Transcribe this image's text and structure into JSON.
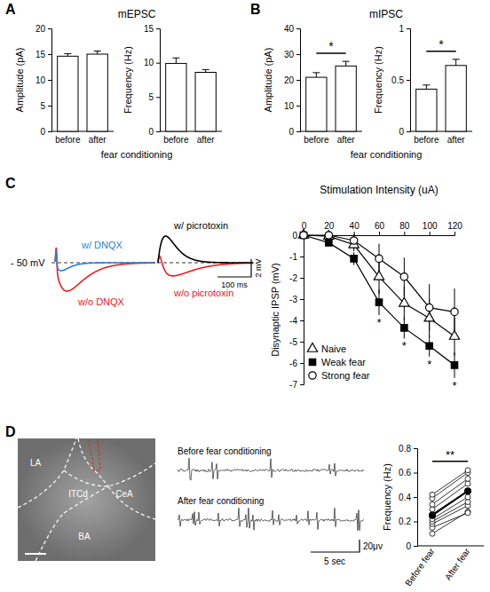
{
  "chart_data": [
    {
      "type": "bar",
      "panel": "A",
      "title": "mEPSC",
      "ylabel": "Amplitude (pA)",
      "xlabel": "fear conditioning",
      "categories": [
        "before",
        "after"
      ],
      "values": [
        14.6,
        15.0
      ],
      "errors": [
        0.5,
        0.6
      ],
      "ylim": [
        0,
        20
      ],
      "yticks": [
        0,
        5,
        10,
        15,
        20
      ],
      "color": "#ffffff"
    },
    {
      "type": "bar",
      "ylabel": "Frequency (Hz)",
      "categories": [
        "before",
        "after"
      ],
      "values": [
        9.9,
        8.6
      ],
      "errors": [
        0.8,
        0.4
      ],
      "ylim": [
        0,
        15
      ],
      "yticks": [
        0,
        5,
        10,
        15
      ],
      "color": "#ffffff"
    },
    {
      "type": "bar",
      "panel": "B",
      "title": "mIPSC",
      "ylabel": "Amplitude (pA)",
      "xlabel": "fear conditioning",
      "categories": [
        "before",
        "after"
      ],
      "values": [
        21.0,
        25.4
      ],
      "errors": [
        1.8,
        1.8
      ],
      "ylim": [
        0,
        40
      ],
      "yticks": [
        0,
        10,
        20,
        30,
        40
      ],
      "color": "#ffffff",
      "annotations": [
        {
          "text": "*"
        }
      ]
    },
    {
      "type": "bar",
      "ylabel": "Frequency (Hz)",
      "categories": [
        "before",
        "after"
      ],
      "values": [
        0.41,
        0.64
      ],
      "errors": [
        0.04,
        0.06
      ],
      "ylim": [
        0,
        1
      ],
      "yticks": [
        0,
        0.5,
        1
      ],
      "color": "#ffffff",
      "annotations": [
        {
          "text": "*"
        }
      ]
    },
    {
      "type": "trace",
      "panel": "C",
      "traces": [
        {
          "name": "w/ DNQX",
          "color": "#2a7fd4"
        },
        {
          "name": "w/o DNQX",
          "color": "#e8201e"
        },
        {
          "name": "w/ picrotoxin",
          "color": "#000000"
        },
        {
          "name": "w/o picrotoxin",
          "color": "#e8201e"
        }
      ],
      "annotations": [
        {
          "text": "- 50 mV"
        }
      ],
      "scale_bar": {
        "x": "100 ms",
        "y": "2 mV"
      }
    },
    {
      "type": "line",
      "xlabel": "Stimulation Intensity (uA)",
      "ylabel": "Disynaptic IPSP (mV)",
      "x": [
        0,
        20,
        40,
        60,
        80,
        100,
        120
      ],
      "xlim": [
        0,
        120
      ],
      "xticks": [
        0,
        20,
        40,
        60,
        80,
        100,
        120
      ],
      "ylim": [
        -7,
        0
      ],
      "yticks": [
        0,
        -1,
        -2,
        -3,
        -4,
        -5,
        -6,
        -7
      ],
      "legend": "lower left",
      "series": [
        {
          "name": "Naive",
          "color": "#000000",
          "marker": "triangle-open",
          "values": [
            0,
            -0.05,
            -0.45,
            -1.95,
            -3.2,
            -3.9,
            -4.75
          ],
          "errors": [
            0,
            0.1,
            0.3,
            0.8,
            0.8,
            0.9,
            0.9
          ]
        },
        {
          "name": "Weak fear",
          "color": "#000000",
          "marker": "square",
          "values": [
            0,
            -0.35,
            -1.1,
            -3.15,
            -4.35,
            -5.2,
            -6.1
          ],
          "errors": [
            0,
            0.15,
            0.3,
            0.6,
            0.5,
            0.5,
            0.6
          ]
        },
        {
          "name": "Strong fear",
          "color": "#000000",
          "marker": "circle-open",
          "values": [
            0,
            0,
            -0.25,
            -1.1,
            -1.95,
            -3.4,
            -3.6
          ],
          "errors": [
            0,
            0.1,
            0.3,
            0.7,
            0.9,
            1.1,
            1.1
          ]
        }
      ],
      "annotations": [
        {
          "x": 60,
          "text": "*"
        },
        {
          "x": 80,
          "text": "*"
        },
        {
          "x": 100,
          "text": "*"
        },
        {
          "x": 120,
          "text": "*"
        }
      ]
    },
    {
      "type": "image",
      "panel": "D",
      "labels": [
        "LA",
        "ITCd",
        "CeA",
        "BA"
      ]
    },
    {
      "type": "trace",
      "traces": [
        {
          "name": "Before fear conditioning",
          "color": "#000000"
        },
        {
          "name": "After fear conditioning",
          "color": "#000000"
        }
      ],
      "scale_bar": {
        "x": "5 sec",
        "y": "20μv"
      }
    },
    {
      "type": "paired",
      "ylabel": "Frequency (Hz)",
      "categories": [
        "Before fear",
        "After fear"
      ],
      "pairs": [
        [
          0.1,
          0.28
        ],
        [
          0.15,
          0.27
        ],
        [
          0.18,
          0.33
        ],
        [
          0.2,
          0.36
        ],
        [
          0.22,
          0.4
        ],
        [
          0.26,
          0.45
        ],
        [
          0.3,
          0.51
        ],
        [
          0.34,
          0.55
        ],
        [
          0.39,
          0.6
        ],
        [
          0.42,
          0.62
        ]
      ],
      "means": [
        0.25,
        0.45
      ],
      "ylim": [
        0,
        0.8
      ],
      "yticks": [
        0,
        0.2,
        0.4,
        0.6,
        0.8
      ],
      "annotations": [
        {
          "text": "**"
        }
      ]
    }
  ]
}
